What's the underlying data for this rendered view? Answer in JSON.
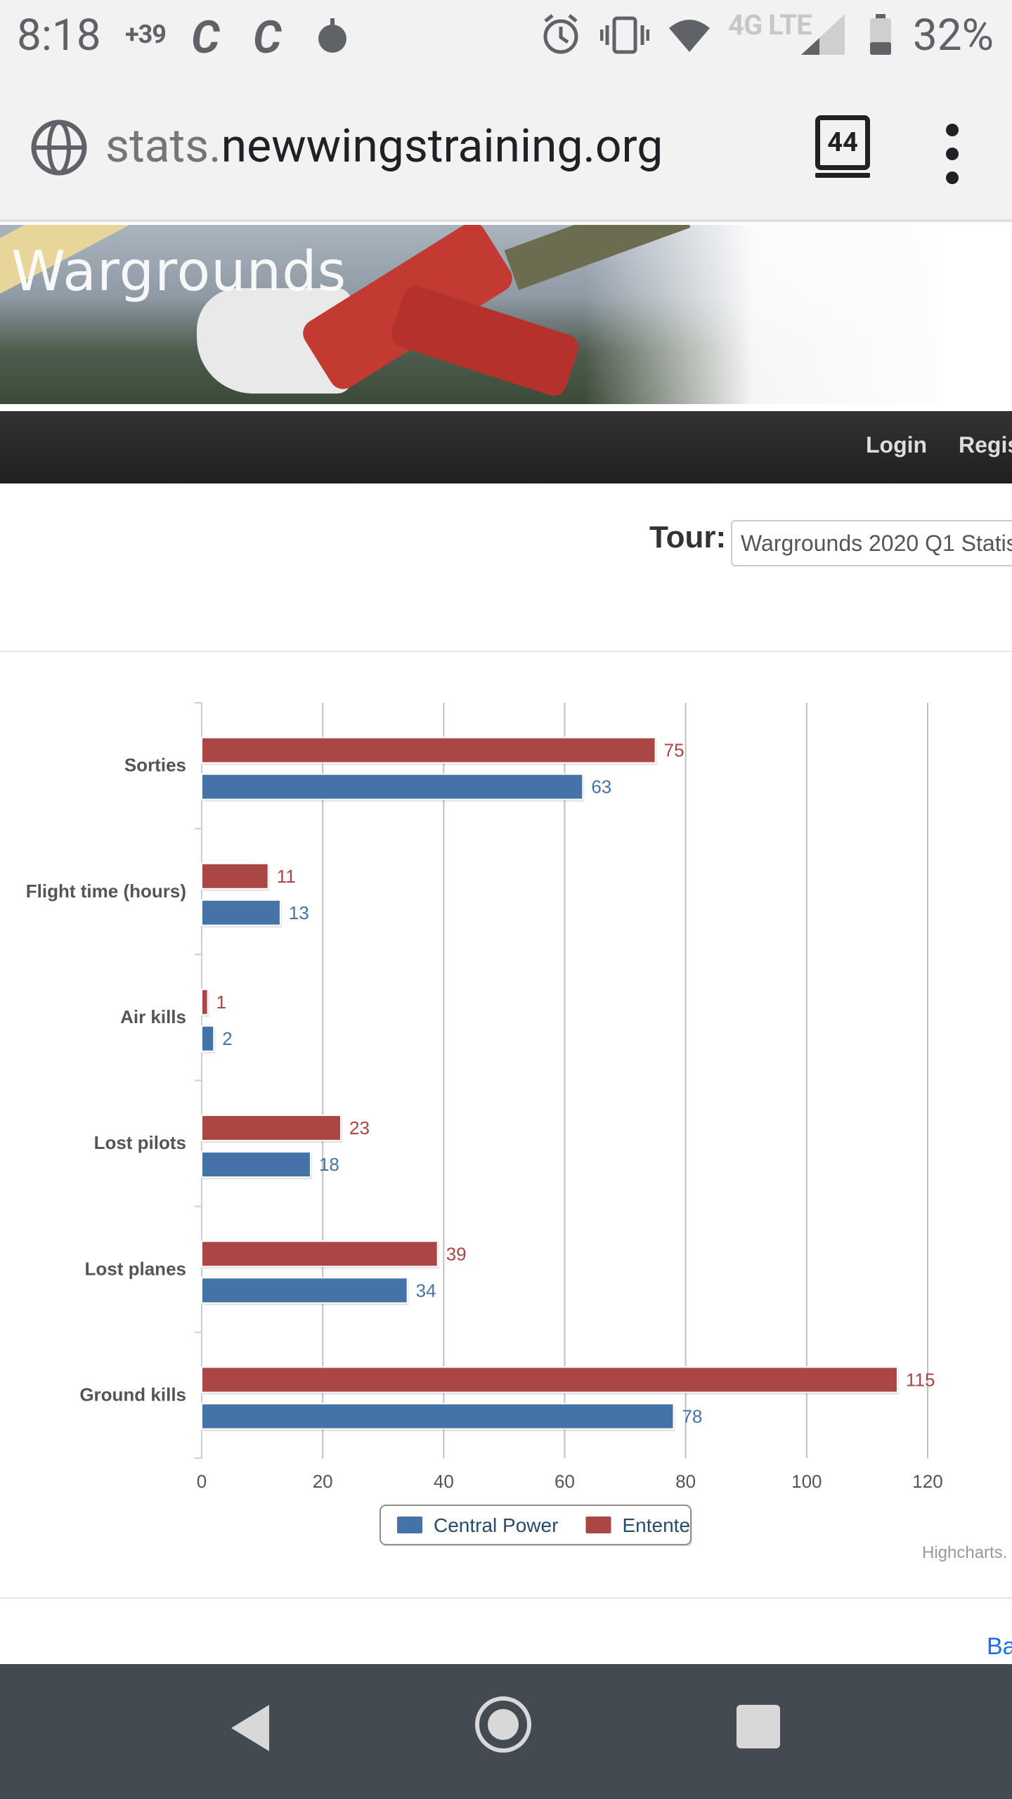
{
  "status_bar": {
    "time": "8:18",
    "notification_badge": "+39",
    "app_icon_1": "C",
    "app_icon_2": "C",
    "battery_percent": "32%",
    "network": "4G LTE"
  },
  "browser": {
    "url_prefix": "stats.",
    "url_domain": "newwingstraining.org",
    "tab_count": "44"
  },
  "site": {
    "banner_title": "Wargrounds",
    "nav": {
      "login": "Login",
      "register": "Regis"
    },
    "tour_label": "Tour:",
    "tour_value": "Wargrounds 2020 Q1 Statis",
    "credits": "Highcharts.",
    "back_link": "Ba"
  },
  "colors": {
    "entente": "#aa4643",
    "central": "#4572a7",
    "grid": "#c0c0c0",
    "axis": "#c0d0e0"
  },
  "chart_data": {
    "type": "bar",
    "categories": [
      "Sorties",
      "Flight time (hours)",
      "Air kills",
      "Lost pilots",
      "Lost planes",
      "Ground kills"
    ],
    "series": [
      {
        "name": "Entente",
        "values": [
          75,
          11,
          1,
          23,
          39,
          115
        ]
      },
      {
        "name": "Central Power",
        "values": [
          63,
          13,
          2,
          18,
          34,
          78
        ]
      }
    ],
    "xlim": [
      0,
      120
    ],
    "ticks": [
      0,
      20,
      40,
      60,
      80,
      100,
      120
    ],
    "legend": [
      "Central Power",
      "Entente"
    ],
    "grid": true,
    "orientation": "horizontal",
    "legend_position": "bottom-center"
  }
}
